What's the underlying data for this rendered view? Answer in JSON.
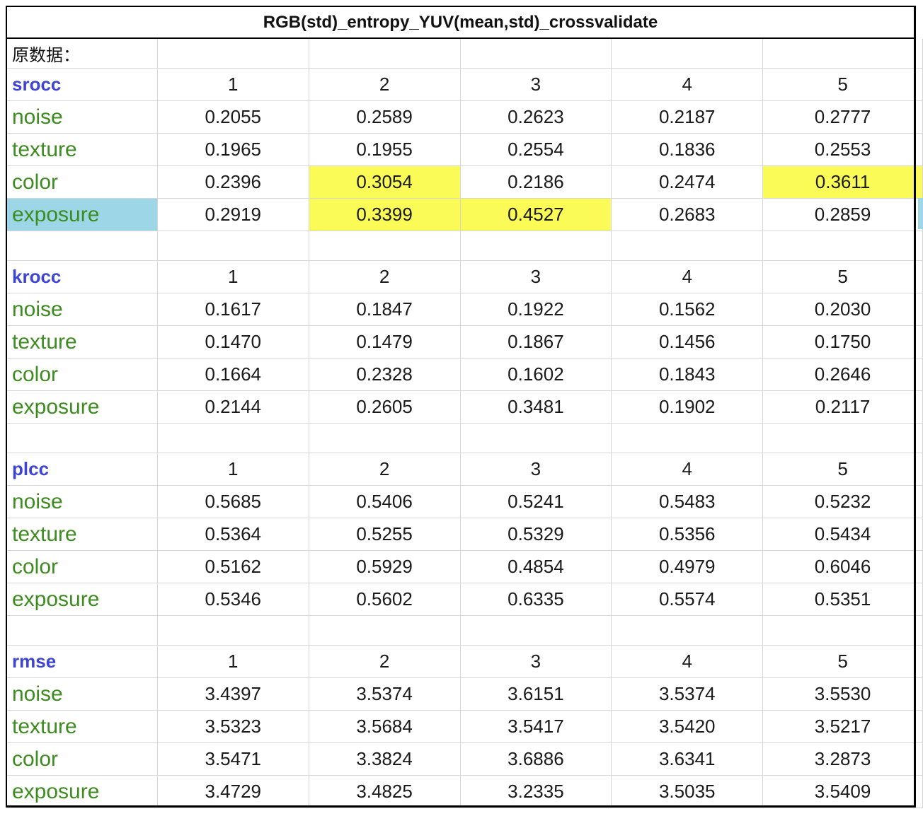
{
  "title": "RGB(std)_entropy_YUV(mean,std)_crossvalidate",
  "note": "原数据：",
  "highlight_colors": {
    "yellow": "#fbfb57",
    "blue": "#9dd6e6"
  },
  "sections": [
    {
      "name": "srocc",
      "headers": [
        "1",
        "2",
        "3",
        "4",
        "5"
      ],
      "rows": [
        {
          "label": "noise",
          "values": [
            "0.2055",
            "0.2589",
            "0.2623",
            "0.2187",
            "0.2777"
          ]
        },
        {
          "label": "texture",
          "values": [
            "0.1965",
            "0.1955",
            "0.2554",
            "0.1836",
            "0.2553"
          ]
        },
        {
          "label": "color",
          "values": [
            "0.2396",
            "0.3054",
            "0.2186",
            "0.2474",
            "0.3611"
          ]
        },
        {
          "label": "exposure",
          "values": [
            "0.2919",
            "0.3399",
            "0.4527",
            "0.2683",
            "0.2859"
          ]
        }
      ]
    },
    {
      "name": "krocc",
      "headers": [
        "1",
        "2",
        "3",
        "4",
        "5"
      ],
      "rows": [
        {
          "label": "noise",
          "values": [
            "0.1617",
            "0.1847",
            "0.1922",
            "0.1562",
            "0.2030"
          ]
        },
        {
          "label": "texture",
          "values": [
            "0.1470",
            "0.1479",
            "0.1867",
            "0.1456",
            "0.1750"
          ]
        },
        {
          "label": "color",
          "values": [
            "0.1664",
            "0.2328",
            "0.1602",
            "0.1843",
            "0.2646"
          ]
        },
        {
          "label": "exposure",
          "values": [
            "0.2144",
            "0.2605",
            "0.3481",
            "0.1902",
            "0.2117"
          ]
        }
      ]
    },
    {
      "name": "plcc",
      "headers": [
        "1",
        "2",
        "3",
        "4",
        "5"
      ],
      "rows": [
        {
          "label": "noise",
          "values": [
            "0.5685",
            "0.5406",
            "0.5241",
            "0.5483",
            "0.5232"
          ]
        },
        {
          "label": "texture",
          "values": [
            "0.5364",
            "0.5255",
            "0.5329",
            "0.5356",
            "0.5434"
          ]
        },
        {
          "label": "color",
          "values": [
            "0.5162",
            "0.5929",
            "0.4854",
            "0.4979",
            "0.6046"
          ]
        },
        {
          "label": "exposure",
          "values": [
            "0.5346",
            "0.5602",
            "0.6335",
            "0.5574",
            "0.5351"
          ]
        }
      ]
    },
    {
      "name": "rmse",
      "headers": [
        "1",
        "2",
        "3",
        "4",
        "5"
      ],
      "rows": [
        {
          "label": "noise",
          "values": [
            "3.4397",
            "3.5374",
            "3.6151",
            "3.5374",
            "3.5530"
          ]
        },
        {
          "label": "texture",
          "values": [
            "3.5323",
            "3.5684",
            "3.5417",
            "3.5420",
            "3.5217"
          ]
        },
        {
          "label": "color",
          "values": [
            "3.5471",
            "3.3824",
            "3.6886",
            "3.6341",
            "3.2873"
          ]
        },
        {
          "label": "exposure",
          "values": [
            "3.4729",
            "3.4825",
            "3.2335",
            "3.5035",
            "3.5409"
          ]
        }
      ]
    }
  ]
}
